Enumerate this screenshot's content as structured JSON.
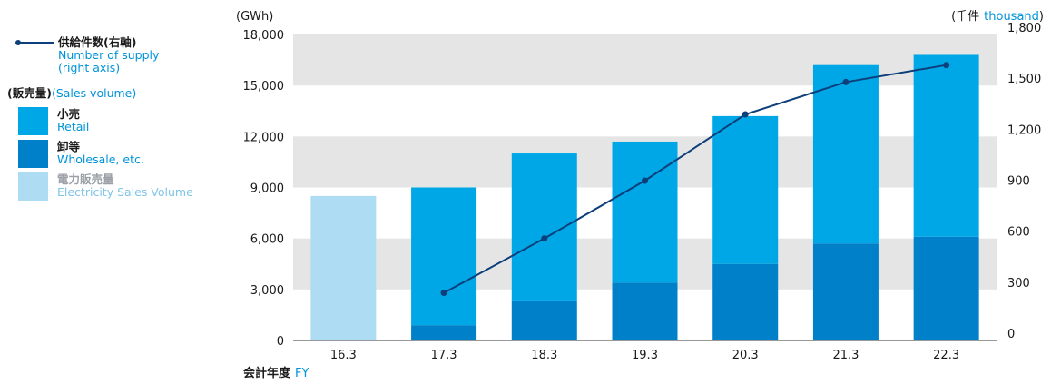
{
  "legend": {
    "line_jp": "供給件数(右軸)",
    "line_en1": "Number of supply",
    "line_en2": "(right axis)",
    "sales_jp": "(販売量)",
    "sales_en": "(Sales volume)",
    "retail_jp": "小売",
    "retail_en": "Retail",
    "wholesale_jp": "卸等",
    "wholesale_en": "Wholesale, etc.",
    "elec_jp": "電力販売量",
    "elec_en": "Electricity Sales Volume"
  },
  "axes": {
    "left_unit": "(GWh)",
    "right_unit_jp": "(千件",
    "right_unit_en": "thousand",
    "right_unit_close": ")",
    "xlabel_jp": "会計年度",
    "xlabel_en": "FY"
  },
  "colors": {
    "retail": "#00a7e6",
    "wholesale": "#0080c8",
    "electricity": "#addcf3",
    "line": "#0d3f7a",
    "band": "#e5e5e5"
  },
  "chart_data": {
    "type": "bar",
    "stacked": true,
    "categories": [
      "16.3",
      "17.3",
      "18.3",
      "19.3",
      "20.3",
      "21.3",
      "22.3"
    ],
    "series": [
      {
        "name": "電力販売量 Electricity Sales Volume",
        "axis": "left",
        "values": [
          8500,
          null,
          null,
          null,
          null,
          null,
          null
        ]
      },
      {
        "name": "卸等 Wholesale, etc.",
        "axis": "left",
        "values": [
          null,
          900,
          2300,
          3400,
          4500,
          5700,
          6100
        ]
      },
      {
        "name": "小売 Retail",
        "axis": "left",
        "values": [
          null,
          8100,
          8700,
          8300,
          8700,
          10500,
          10700
        ]
      },
      {
        "name": "供給件数(右軸) Number of supply (right axis)",
        "axis": "right",
        "type": "line",
        "values": [
          null,
          280,
          600,
          940,
          1330,
          1520,
          1620
        ]
      }
    ],
    "ylim": [
      0,
      18000
    ],
    "yticks": [
      "0",
      "3,000",
      "6,000",
      "9,000",
      "12,000",
      "15,000",
      "18,000"
    ],
    "y2lim": [
      0,
      1800
    ],
    "y2ticks": [
      "0",
      "300",
      "600",
      "900",
      "1,200",
      "1,500",
      "1,800"
    ],
    "grid": "alternating horizontal bands"
  }
}
